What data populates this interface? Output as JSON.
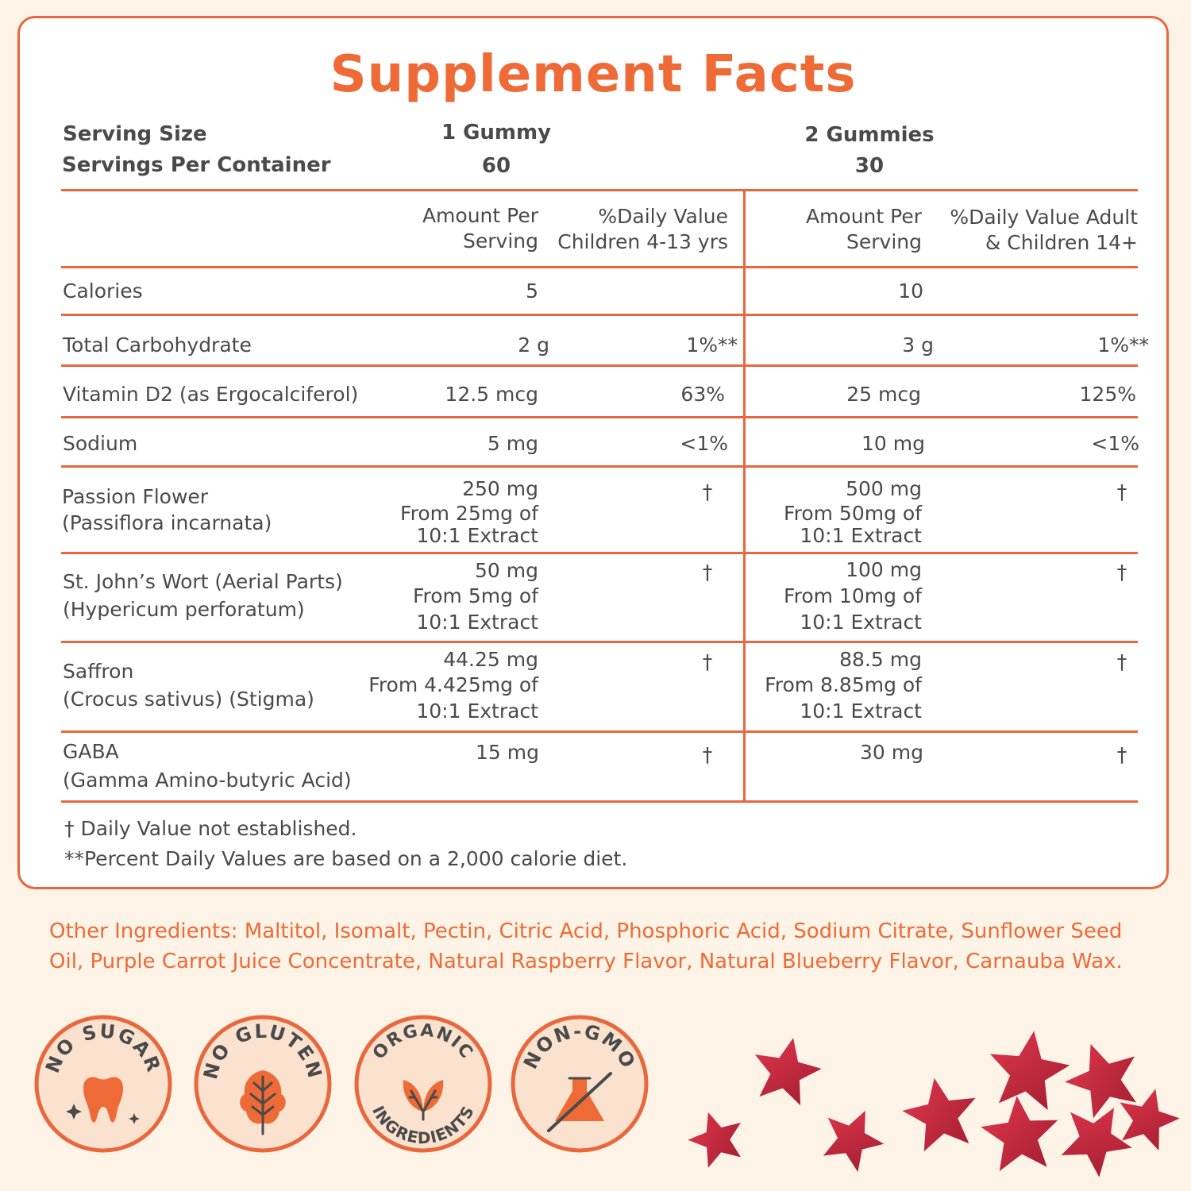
{
  "title": "Supplement Facts",
  "serving": {
    "size_label": "Serving Size",
    "per_container_label": "Servings Per Container",
    "child_size": "1 Gummy",
    "child_per_container": "60",
    "adult_size": "2 Gummies",
    "adult_per_container": "30"
  },
  "columns": {
    "child_amount_line1": "Amount Per",
    "child_amount_line2": "Serving",
    "child_dv_line1": "%Daily Value",
    "child_dv_line2": "Children 4-13 yrs",
    "adult_amount_line1": "Amount Per",
    "adult_amount_line2": "Serving",
    "adult_dv_line1": "%Daily Value Adult",
    "adult_dv_line2": "& Children 14+"
  },
  "rows": [
    {
      "name": "Calories",
      "child_amount": "5",
      "child_dv": "",
      "adult_amount": "10",
      "adult_dv": ""
    },
    {
      "name": "Total Carbohydrate",
      "child_amount": "2 g",
      "child_dv": "1%**",
      "adult_amount": "3 g",
      "adult_dv": "1%**"
    },
    {
      "name": "Vitamin D2 (as Ergocalciferol)",
      "child_amount": "12.5 mcg",
      "child_dv": "63%",
      "adult_amount": "25 mcg",
      "adult_dv": "125%"
    },
    {
      "name": "Sodium",
      "child_amount": "5 mg",
      "child_dv": "<1%",
      "adult_amount": "10 mg",
      "adult_dv": "<1%"
    },
    {
      "name_line1": "Passion Flower",
      "name_line2": "(Passiflora incarnata)",
      "child_amount": "250 mg",
      "child_from": "From 25mg of",
      "child_extract": "10:1 Extract",
      "child_dv": "†",
      "adult_amount": "500 mg",
      "adult_from": "From 50mg of",
      "adult_extract": "10:1 Extract",
      "adult_dv": "†"
    },
    {
      "name_line1": "St. John’s Wort (Aerial Parts)",
      "name_line2": "(Hypericum perforatum)",
      "child_amount": "50 mg",
      "child_from": "From 5mg of",
      "child_extract": "10:1 Extract",
      "child_dv": "†",
      "adult_amount": "100 mg",
      "adult_from": "From 10mg of",
      "adult_extract": "10:1 Extract",
      "adult_dv": "†"
    },
    {
      "name_line1": "Saffron",
      "name_line2": "(Crocus sativus) (Stigma)",
      "child_amount": "44.25 mg",
      "child_from": "From 4.425mg of",
      "child_extract": "10:1 Extract",
      "child_dv": "†",
      "adult_amount": "88.5 mg",
      "adult_from": "From 8.85mg of",
      "adult_extract": "10:1 Extract",
      "adult_dv": "†"
    },
    {
      "name_line1": "GABA",
      "name_line2": "(Gamma Amino-butyric Acid)",
      "child_amount": "15 mg",
      "child_dv": "†",
      "adult_amount": "30 mg",
      "adult_dv": "†"
    }
  ],
  "footnotes": {
    "dagger": "† Daily Value not established.",
    "percent": "**Percent Daily Values are based on a 2,000 calorie diet."
  },
  "other_ingredients": "Other Ingredients: Maltitol, Isomalt, Pectin, Citric Acid, Phosphoric Acid, Sodium Citrate, Sunflower Seed Oil, Purple Carrot Juice Concentrate, Natural Raspberry Flavor, Natural Blueberry Flavor, Carnauba Wax.",
  "badges": [
    {
      "label": "NO SUGAR",
      "icon": "tooth-icon"
    },
    {
      "label": "NO GLUTEN",
      "icon": "leaf-icon"
    },
    {
      "label_top": "ORGANIC",
      "label_bottom": "INGREDIENTS",
      "icon": "sprout-icon"
    },
    {
      "label": "NON-GMO",
      "icon": "crossed-flask-icon"
    }
  ],
  "colors": {
    "accent": "#ee6a36",
    "border": "#e8673c",
    "text": "#4a4a4a",
    "badge_fill": "#fbe2cf",
    "gummy": "#c4283c"
  }
}
